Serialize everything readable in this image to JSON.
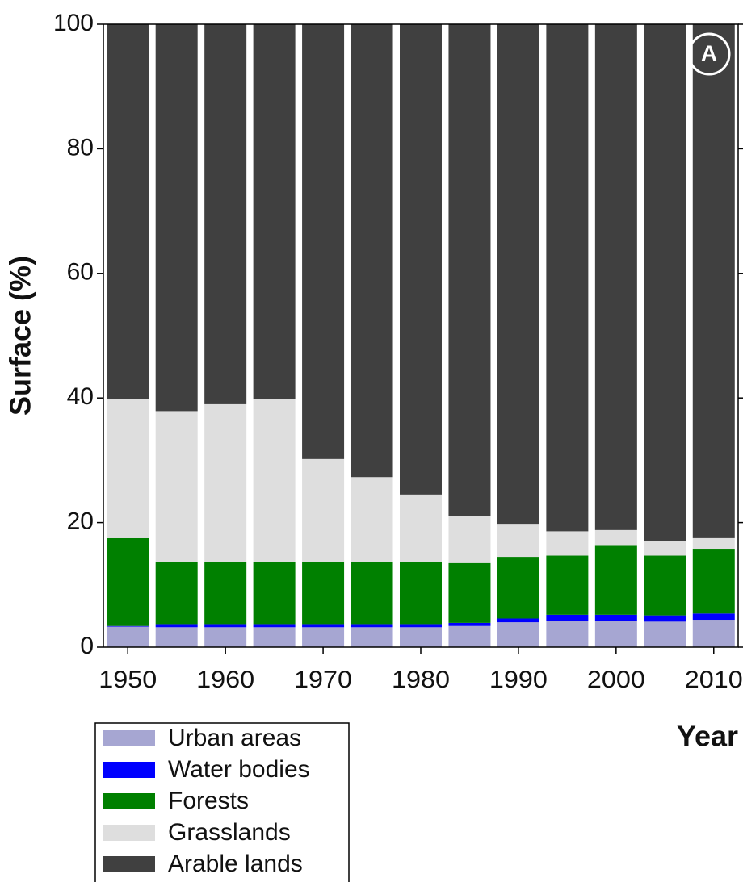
{
  "chart_data": {
    "type": "stacked_bar",
    "y_label": "Surface (%)",
    "x_label": "Year",
    "annotation": "A",
    "categories": [
      "1950",
      null,
      "1960",
      null,
      "1970",
      null,
      "1980",
      null,
      "1990",
      null,
      "2000",
      null,
      "2010"
    ],
    "series": [
      {
        "name": "Urban areas",
        "color": "#a6a6d2",
        "values": [
          3.3,
          3.2,
          3.2,
          3.2,
          3.2,
          3.2,
          3.2,
          3.4,
          4.0,
          4.2,
          4.2,
          4.1,
          4.4
        ]
      },
      {
        "name": "Water bodies",
        "color": "#0000ff",
        "values": [
          0.1,
          0.5,
          0.5,
          0.5,
          0.5,
          0.5,
          0.5,
          0.5,
          0.6,
          1.0,
          1.0,
          1.0,
          1.0
        ]
      },
      {
        "name": "Forests",
        "color": "#008000",
        "values": [
          14.1,
          10.0,
          10.0,
          10.0,
          10.0,
          10.0,
          10.0,
          9.6,
          9.9,
          9.5,
          11.2,
          9.6,
          10.4
        ]
      },
      {
        "name": "Grasslands",
        "color": "#dedede",
        "values": [
          22.3,
          24.2,
          25.3,
          26.1,
          16.5,
          13.6,
          10.8,
          7.5,
          5.3,
          3.9,
          2.4,
          2.3,
          1.7
        ]
      },
      {
        "name": "Arable lands",
        "color": "#404040",
        "values": [
          60.2,
          62.1,
          61.0,
          60.2,
          69.8,
          72.7,
          75.5,
          79.0,
          80.2,
          81.4,
          81.2,
          83.0,
          82.5
        ]
      }
    ],
    "ylim": [
      0,
      100
    ],
    "yticks": [
      0,
      20,
      40,
      60,
      80,
      100
    ]
  }
}
